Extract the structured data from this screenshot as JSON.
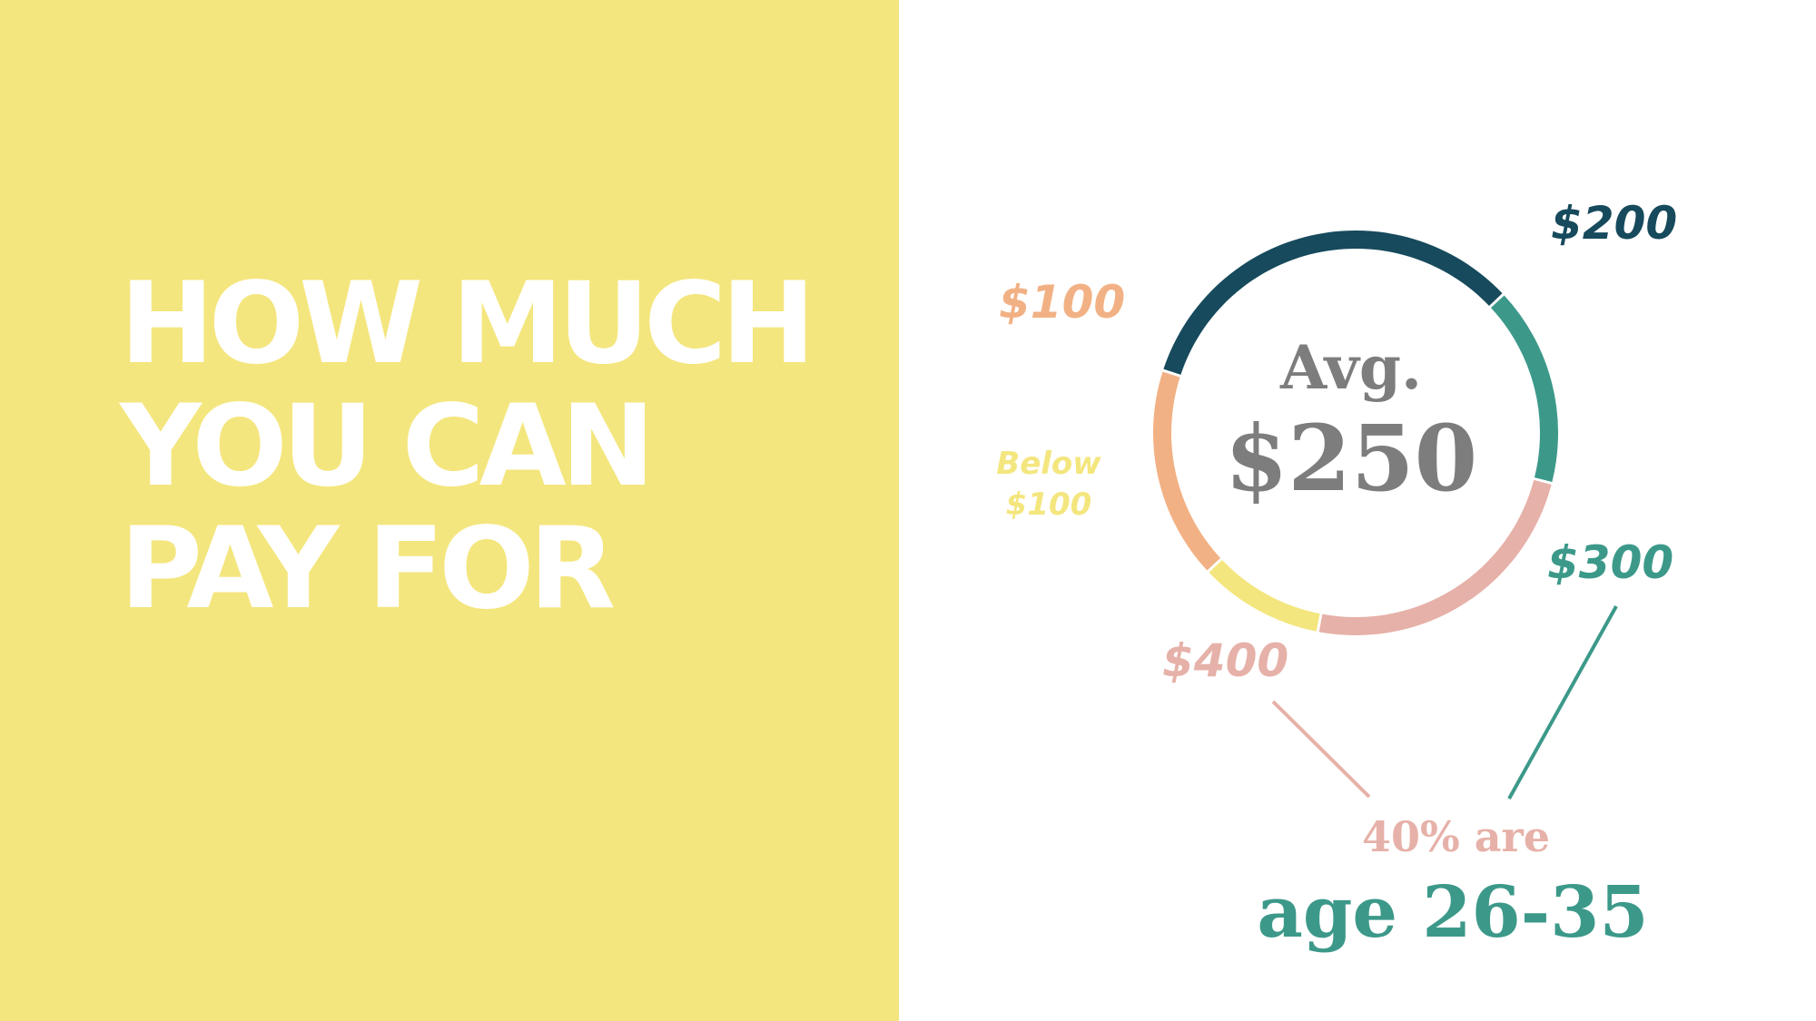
{
  "headline": {
    "line1": "HOW MUCH",
    "line2": "YOU CAN",
    "line3": "PAY FOR"
  },
  "colors": {
    "background_left": "#f4e67e",
    "below_100": "#f4e67e",
    "usd_100": "#f2b184",
    "usd_200": "#164a5c",
    "usd_300": "#3c998a",
    "usd_400": "#e6b1a8",
    "center_text": "#7d7d7d"
  },
  "chart_data": {
    "type": "pie",
    "variant": "donut",
    "center_label": "Avg.",
    "center_value": "$250",
    "slices": [
      {
        "label": "$200",
        "value": 33,
        "color": "#164a5c"
      },
      {
        "label": "$300",
        "value": 16,
        "color": "#3c998a"
      },
      {
        "label": "$400",
        "value": 24,
        "color": "#e6b1a8"
      },
      {
        "label": "Below $100",
        "label_lines": [
          "Below",
          "$100"
        ],
        "value": 10,
        "color": "#f4e67e"
      },
      {
        "label": "$100",
        "value": 17,
        "color": "#f2b184"
      }
    ]
  },
  "footer": {
    "subtitle": "40% are",
    "title": "age 26-35"
  }
}
